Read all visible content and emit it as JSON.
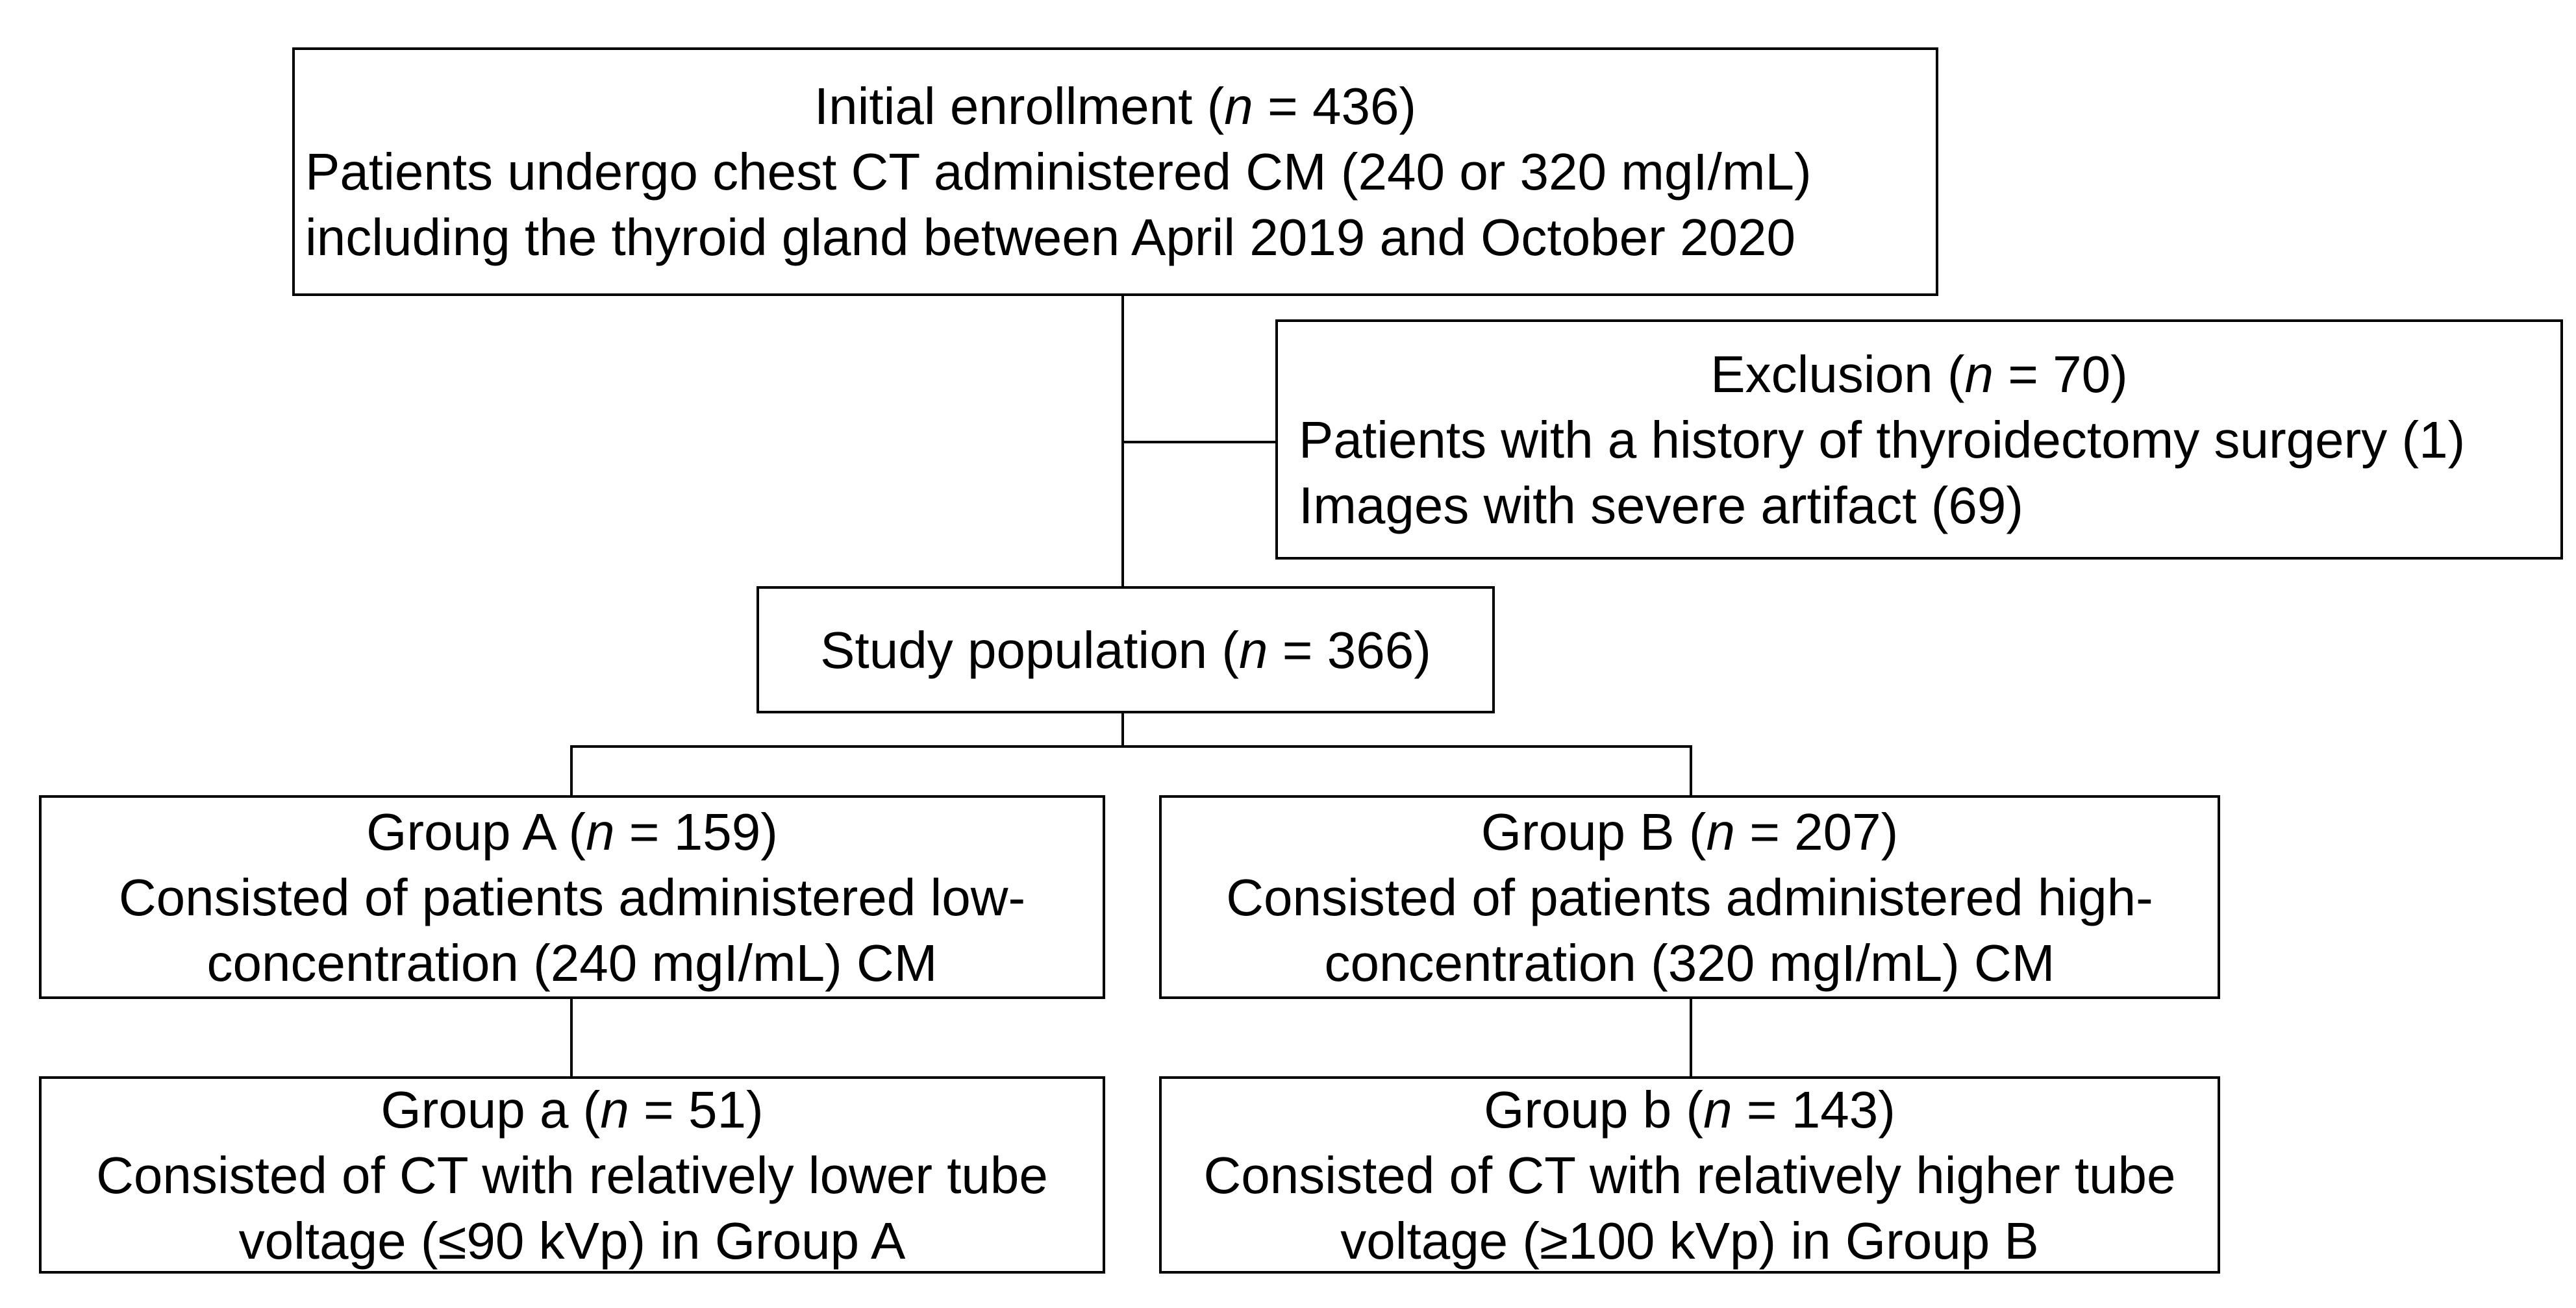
{
  "figure": {
    "colors": {
      "background": "#ffffff",
      "border": "#000000",
      "text": "#000000"
    },
    "boxes": {
      "initial_enrollment": {
        "title": "Initial enrollment (n = 436)",
        "lines": [
          "Patients undergo chest CT administered CM (240 or 320 mgI/mL)",
          "including the thyroid gland between April 2019 and October 2020"
        ]
      },
      "exclusion": {
        "title": "Exclusion (n = 70)",
        "lines": [
          "Patients with a history of thyroidectomy surgery (1)",
          "Images with severe artifact (69)"
        ]
      },
      "study_population": {
        "title": "Study population (n = 366)"
      },
      "group_a": {
        "title": "Group A (n = 159)",
        "lines": [
          "Consisted of patients administered low-",
          "concentration (240 mgI/mL) CM"
        ]
      },
      "group_b": {
        "title": "Group B (n = 207)",
        "lines": [
          "Consisted of patients administered high-",
          "concentration (320 mgI/mL) CM"
        ]
      },
      "group_a_lower_voltage": {
        "title": "Group a (n = 51)",
        "lines": [
          "Consisted of CT with relatively lower tube",
          "voltage (≤90 kVp) in Group A"
        ]
      },
      "group_b_higher_voltage": {
        "title": "Group b (n = 143)",
        "lines": [
          "Consisted of CT with relatively higher tube",
          "voltage (≥100 kVp) in Group B"
        ]
      }
    }
  }
}
